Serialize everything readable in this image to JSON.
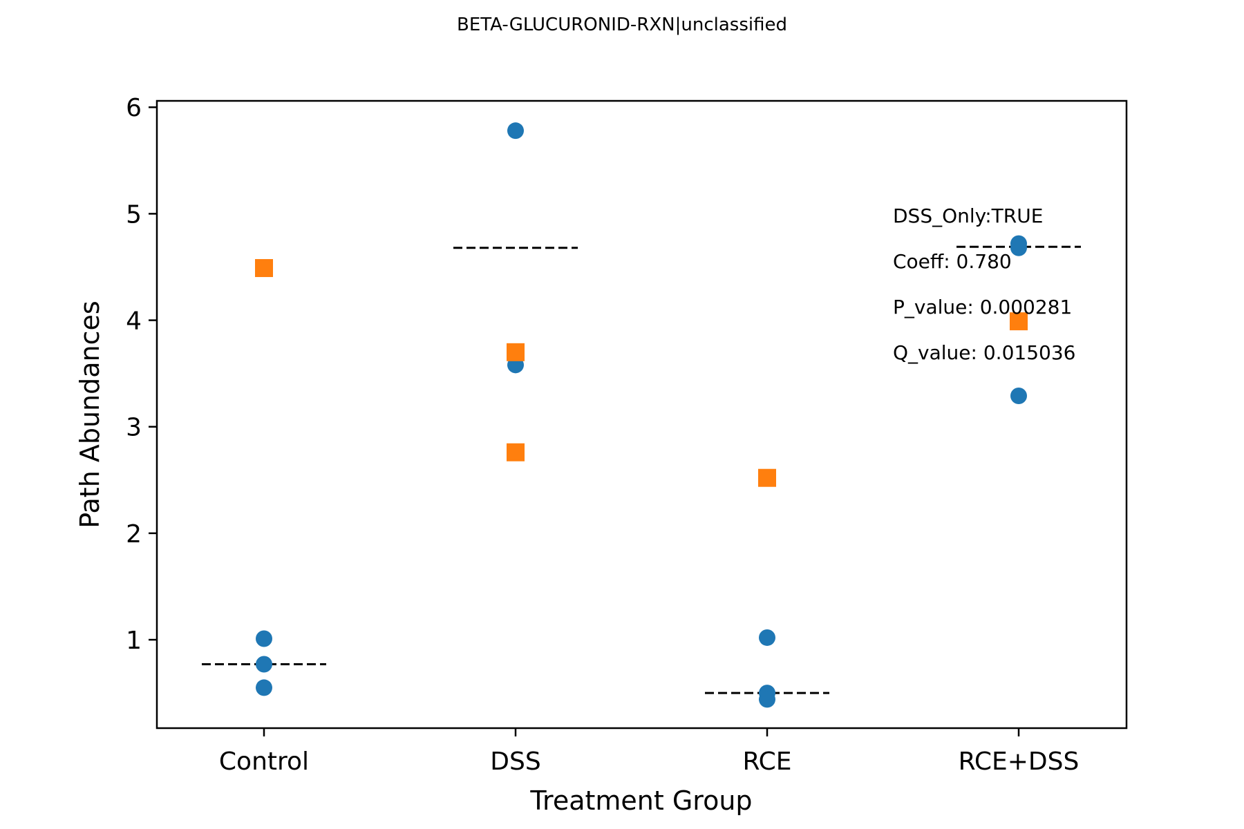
{
  "chart_data": {
    "type": "scatter",
    "title": "BETA-GLUCURONID-RXN|unclassified",
    "xlabel": "Treatment Group",
    "ylabel": "Path Abundances",
    "categories": [
      "Control",
      "DSS",
      "RCE",
      "RCE+DSS"
    ],
    "yticks": [
      1,
      2,
      3,
      4,
      5,
      6
    ],
    "ylim": [
      0.17,
      6.06
    ],
    "grid": false,
    "series": [
      {
        "marker": "circle",
        "color": "#1f77b4",
        "points": [
          {
            "category": "Control",
            "y": 1.01
          },
          {
            "category": "Control",
            "y": 0.77
          },
          {
            "category": "Control",
            "y": 0.55
          },
          {
            "category": "DSS",
            "y": 5.78
          },
          {
            "category": "DSS",
            "y": 3.58
          },
          {
            "category": "RCE",
            "y": 1.02
          },
          {
            "category": "RCE",
            "y": 0.5
          },
          {
            "category": "RCE",
            "y": 0.44
          },
          {
            "category": "RCE+DSS",
            "y": 4.72
          },
          {
            "category": "RCE+DSS",
            "y": 4.68
          },
          {
            "category": "RCE+DSS",
            "y": 3.29
          }
        ]
      },
      {
        "marker": "square",
        "color": "#ff7f0e",
        "points": [
          {
            "category": "Control",
            "y": 4.49
          },
          {
            "category": "DSS",
            "y": 3.7
          },
          {
            "category": "DSS",
            "y": 2.76
          },
          {
            "category": "RCE",
            "y": 2.52
          },
          {
            "category": "RCE+DSS",
            "y": 3.99
          }
        ]
      }
    ],
    "group_means": [
      {
        "category": "Control",
        "y": 0.77
      },
      {
        "category": "DSS",
        "y": 4.68
      },
      {
        "category": "RCE",
        "y": 0.5
      },
      {
        "category": "RCE+DSS",
        "y": 4.69
      }
    ],
    "annotations": [
      "DSS_Only:TRUE",
      "Coeff: 0.780",
      "P_value: 0.000281",
      "Q_value: 0.015036"
    ]
  }
}
